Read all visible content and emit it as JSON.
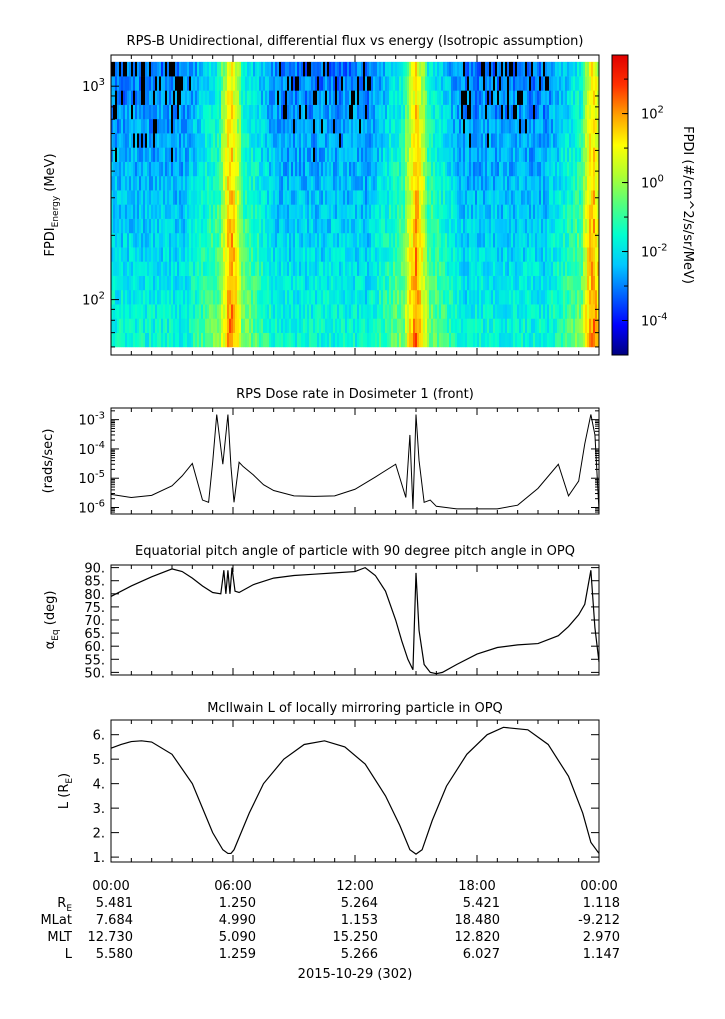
{
  "colors": {
    "colormap": [
      "#00007f",
      "#0000ff",
      "#0064ff",
      "#00c8ff",
      "#00ffd0",
      "#50ff80",
      "#b0ff30",
      "#ffff00",
      "#ffa000",
      "#ff3000",
      "#e00000"
    ]
  },
  "time_axis": {
    "ticks": [
      "00:00",
      "06:00",
      "12:00",
      "18:00",
      "00:00"
    ],
    "date_label": "2015-10-29 (302)"
  },
  "ephemeris": {
    "rows": [
      {
        "label": "R",
        "label_sub": "E",
        "values": [
          "5.481",
          "1.250",
          "5.264",
          "5.421",
          "1.118"
        ]
      },
      {
        "label": "MLat",
        "label_sub": "",
        "values": [
          "7.684",
          "4.990",
          "1.153",
          "18.480",
          "-9.212"
        ]
      },
      {
        "label": "MLT",
        "label_sub": "",
        "values": [
          "12.730",
          "5.090",
          "15.250",
          "12.820",
          "2.970"
        ]
      },
      {
        "label": "L",
        "label_sub": "",
        "values": [
          "5.580",
          "1.259",
          "5.266",
          "6.027",
          "1.147"
        ]
      }
    ]
  },
  "chart_data": [
    {
      "type": "heatmap",
      "title": "RPS-B  Unidirectional, differential flux vs energy (Isotropic assumption)",
      "ylabel_main": "FPDI",
      "ylabel_sub": "Energy",
      "ylabel_unit": " (MeV)",
      "yscale": "log",
      "ylim": [
        55,
        1400
      ],
      "yticks": [
        {
          "value": 100,
          "base": "10",
          "exp": "2"
        },
        {
          "value": 1000,
          "base": "10",
          "exp": "3"
        }
      ],
      "xlim_hours": [
        0,
        24
      ],
      "energy_channel_count": 20,
      "colorbar": {
        "label": "FPDI (#/cm^2/s/sr/MeV)",
        "scale": "log",
        "range": [
          1e-05,
          5000
        ],
        "ticks": [
          {
            "value": 0.0001,
            "exp": "-4"
          },
          {
            "value": 0.01,
            "exp": "-2"
          },
          {
            "value": 1,
            "exp": "0"
          },
          {
            "value": 100,
            "exp": "2"
          }
        ]
      },
      "peak_bands_hours": [
        5.9,
        15.0,
        23.7
      ]
    },
    {
      "type": "line",
      "title": "RPS  Dose rate in Dosimeter 1 (front)",
      "ylabel": "(rads/sec)",
      "yscale": "log",
      "ylim": [
        6e-07,
        0.0025
      ],
      "yticks": [
        {
          "value": 1e-06,
          "exp": "-6"
        },
        {
          "value": 1e-05,
          "exp": "-5"
        },
        {
          "value": 0.0001,
          "exp": "-4"
        },
        {
          "value": 0.001,
          "exp": "-3"
        }
      ],
      "x_hours": [
        0,
        1,
        2,
        3,
        3.5,
        4,
        4.5,
        4.8,
        5.0,
        5.2,
        5.5,
        5.75,
        5.9,
        6.05,
        6.3,
        6.5,
        7,
        7.5,
        8,
        9,
        10,
        11,
        12,
        13,
        14,
        14.5,
        14.7,
        14.85,
        15.0,
        15.15,
        15.4,
        15.7,
        16,
        17,
        18,
        19,
        20,
        21,
        22,
        22.5,
        23,
        23.3,
        23.6,
        23.8,
        24
      ],
      "y": [
        2.8e-06,
        2.2e-06,
        2.6e-06,
        5.5e-06,
        1.2e-05,
        3.2e-05,
        1.8e-06,
        1.5e-06,
        3.5e-05,
        0.0015,
        3e-05,
        0.0015,
        2.5e-05,
        1.5e-06,
        3.5e-05,
        2.5e-05,
        1.3e-05,
        6e-06,
        3.8e-06,
        2.5e-06,
        2.4e-06,
        2.5e-06,
        4.2e-06,
        1.1e-05,
        3e-05,
        2.2e-06,
        0.0003,
        9e-07,
        0.0015,
        4e-05,
        1.5e-06,
        1.8e-06,
        1.1e-06,
        9e-07,
        9e-07,
        9e-07,
        1.2e-06,
        4.5e-06,
        3e-05,
        2.5e-06,
        8e-06,
        0.00015,
        0.0015,
        0.0003,
        8e-07
      ]
    },
    {
      "type": "line",
      "title": "Equatorial pitch angle of particle with 90 degree pitch angle in OPQ",
      "ylabel_main": "α",
      "ylabel_sub": "Eq",
      "ylabel_unit": " (deg)",
      "ylim": [
        49,
        91
      ],
      "yticks": [
        50,
        55,
        60,
        65,
        70,
        75,
        80,
        85,
        90
      ],
      "ytick_labels": [
        "50.",
        "55.",
        "60.",
        "65.",
        "70.",
        "75.",
        "80.",
        "85.",
        "90."
      ],
      "x_hours": [
        0,
        1,
        2,
        3,
        3.5,
        4,
        4.5,
        5,
        5.4,
        5.55,
        5.65,
        5.75,
        5.85,
        5.95,
        6.1,
        6.3,
        7,
        8,
        9,
        10,
        11,
        12,
        12.5,
        13,
        13.5,
        14,
        14.3,
        14.6,
        14.85,
        15.0,
        15.15,
        15.4,
        15.7,
        16,
        16.3,
        17,
        18,
        19,
        20,
        21,
        22,
        22.5,
        23,
        23.3,
        23.6,
        23.8,
        24
      ],
      "y": [
        79,
        83,
        86.5,
        89.5,
        88.5,
        86,
        83,
        80.5,
        80,
        89,
        80,
        89,
        80,
        90,
        81,
        80.5,
        83.5,
        86,
        87,
        87.5,
        88,
        88.5,
        90,
        87,
        81,
        70,
        62,
        55,
        51,
        88,
        66,
        53,
        50,
        49.5,
        50,
        53,
        57,
        59.5,
        60.5,
        61,
        64,
        67.5,
        72,
        76,
        89,
        67,
        54
      ]
    },
    {
      "type": "line",
      "title": "McIlwain L of locally mirroring particle in OPQ",
      "ylabel_main": "L (R",
      "ylabel_sub": "E",
      "ylabel_unit": ")",
      "ylim": [
        0.8,
        6.6
      ],
      "yticks": [
        1,
        2,
        3,
        4,
        5,
        6
      ],
      "ytick_labels": [
        "1.",
        "2.",
        "3.",
        "4.",
        "5.",
        "6."
      ],
      "x_hours": [
        0,
        0.5,
        1,
        1.5,
        2,
        3,
        4,
        4.5,
        5,
        5.5,
        5.75,
        5.9,
        6.05,
        6.3,
        6.8,
        7.5,
        8.5,
        9.5,
        10.5,
        11.5,
        12.5,
        13.5,
        14.2,
        14.7,
        15.0,
        15.3,
        15.8,
        16.5,
        17.5,
        18.5,
        19.3,
        20.5,
        21.5,
        22.5,
        23.2,
        23.6,
        24
      ],
      "y": [
        5.45,
        5.6,
        5.72,
        5.75,
        5.7,
        5.2,
        4.0,
        3.0,
        2.0,
        1.3,
        1.15,
        1.15,
        1.3,
        1.8,
        2.8,
        4.0,
        5.0,
        5.6,
        5.75,
        5.5,
        4.8,
        3.5,
        2.3,
        1.3,
        1.12,
        1.3,
        2.5,
        3.9,
        5.2,
        6.0,
        6.3,
        6.2,
        5.6,
        4.3,
        2.8,
        1.6,
        1.15
      ]
    }
  ]
}
